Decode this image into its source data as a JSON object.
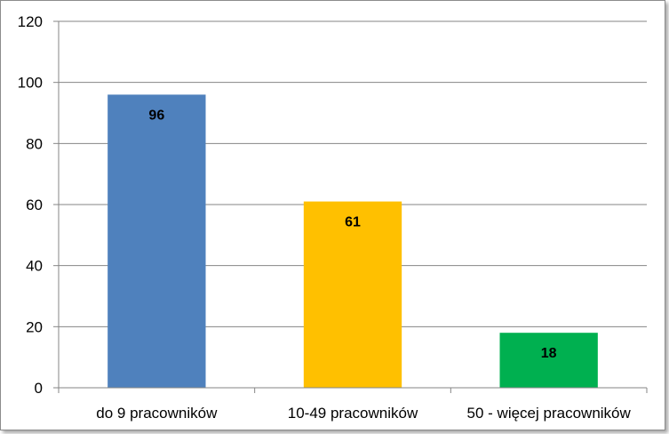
{
  "chart_data": {
    "type": "bar",
    "categories": [
      "do 9 pracowników",
      "10-49 pracowników",
      "50 - więcej pracowników"
    ],
    "values": [
      96,
      61,
      18
    ],
    "data_labels": [
      "96",
      "61",
      "18"
    ],
    "y_ticks": [
      "0",
      "20",
      "40",
      "60",
      "80",
      "100",
      "120"
    ],
    "ylim": [
      0,
      120
    ],
    "grid": true,
    "legend": "none",
    "colors": [
      "#4f81bd",
      "#ffc000",
      "#00b050"
    ]
  }
}
